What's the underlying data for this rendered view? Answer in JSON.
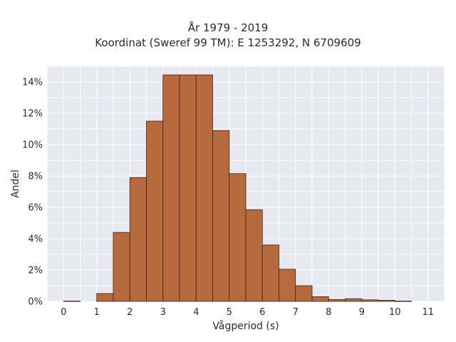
{
  "chart_data": {
    "type": "bar",
    "title": "År 1979 - 2019",
    "subtitle": "Koordinat (Sweref 99 TM): E 1253292, N 6709609",
    "xlabel": "Vågperiod (s)",
    "ylabel": "Andel",
    "bin_width": 0.5,
    "bins": [
      {
        "x0": 0.0,
        "value": 0.02
      },
      {
        "x0": 0.5,
        "value": 0.0
      },
      {
        "x0": 1.0,
        "value": 0.5
      },
      {
        "x0": 1.5,
        "value": 4.4
      },
      {
        "x0": 2.0,
        "value": 7.9
      },
      {
        "x0": 2.5,
        "value": 11.5
      },
      {
        "x0": 3.0,
        "value": 14.45
      },
      {
        "x0": 3.5,
        "value": 14.45
      },
      {
        "x0": 4.0,
        "value": 14.45
      },
      {
        "x0": 4.5,
        "value": 10.9
      },
      {
        "x0": 5.0,
        "value": 8.15
      },
      {
        "x0": 5.5,
        "value": 5.85
      },
      {
        "x0": 6.0,
        "value": 3.6
      },
      {
        "x0": 6.5,
        "value": 2.05
      },
      {
        "x0": 7.0,
        "value": 1.0
      },
      {
        "x0": 7.5,
        "value": 0.3
      },
      {
        "x0": 8.0,
        "value": 0.12
      },
      {
        "x0": 8.5,
        "value": 0.17
      },
      {
        "x0": 9.0,
        "value": 0.1
      },
      {
        "x0": 9.5,
        "value": 0.07
      },
      {
        "x0": 10.0,
        "value": 0.02
      }
    ],
    "xlim": [
      -0.5,
      11.5
    ],
    "ylim": [
      0,
      15
    ],
    "x_ticks": [
      0,
      1,
      2,
      3,
      4,
      5,
      6,
      7,
      8,
      9,
      10,
      11
    ],
    "x_tick_labels": [
      "0",
      "1",
      "2",
      "3",
      "4",
      "5",
      "6",
      "7",
      "8",
      "9",
      "10",
      "11"
    ],
    "y_ticks": [
      0,
      2,
      4,
      6,
      8,
      10,
      12,
      14
    ],
    "y_tick_labels": [
      "0%",
      "2%",
      "4%",
      "6%",
      "8%",
      "10%",
      "12%",
      "14%"
    ],
    "grid": true,
    "colors": {
      "bar_fill": "#b86a3f",
      "bar_stroke": "#3d2417",
      "plot_background": "#e8e8f1",
      "grid": "#ffffff"
    }
  }
}
